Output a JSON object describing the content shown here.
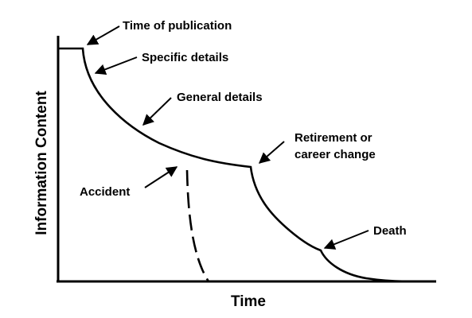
{
  "axes": {
    "x_label": "Time",
    "y_label": "Information Content"
  },
  "annotations": {
    "time_of_publication": "Time of publication",
    "specific_details": "Specific details",
    "general_details": "General details",
    "retirement_line1": "Retirement or",
    "retirement_line2": "career change",
    "accident": "Accident",
    "death": "Death"
  },
  "colors": {
    "line": "#000000",
    "background": "#ffffff"
  }
}
